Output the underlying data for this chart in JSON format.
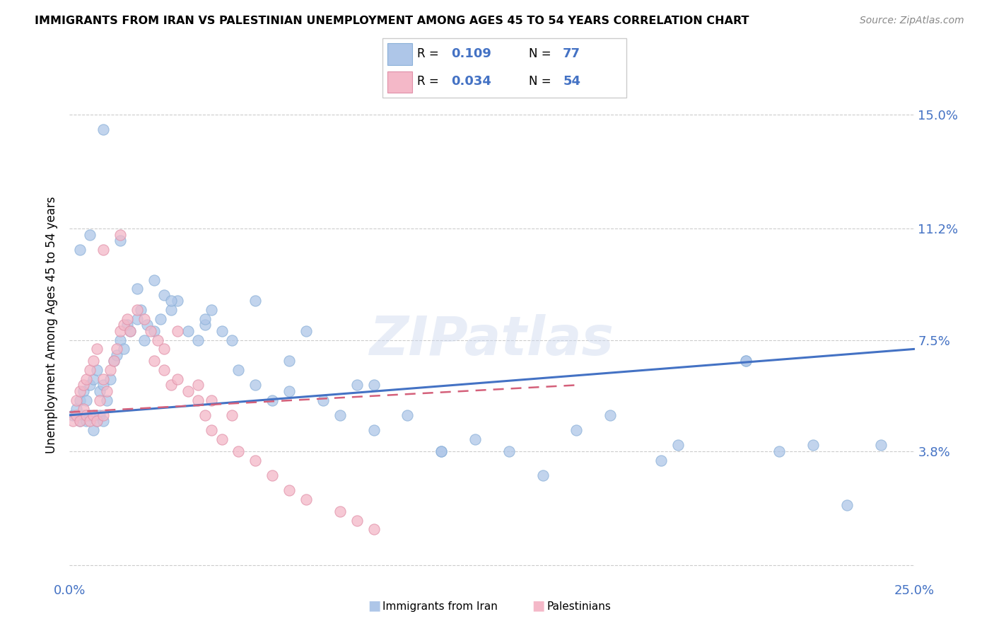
{
  "title": "IMMIGRANTS FROM IRAN VS PALESTINIAN UNEMPLOYMENT AMONG AGES 45 TO 54 YEARS CORRELATION CHART",
  "source": "Source: ZipAtlas.com",
  "ylabel": "Unemployment Among Ages 45 to 54 years",
  "xlim": [
    0.0,
    0.25
  ],
  "ylim": [
    -0.005,
    0.165
  ],
  "ytick_vals": [
    0.0,
    0.038,
    0.075,
    0.112,
    0.15
  ],
  "ytick_labels": [
    "",
    "3.8%",
    "7.5%",
    "11.2%",
    "15.0%"
  ],
  "xtick_vals": [
    0.0,
    0.05,
    0.1,
    0.15,
    0.2,
    0.25
  ],
  "xtick_labels": [
    "0.0%",
    "",
    "",
    "",
    "",
    "25.0%"
  ],
  "legend_R1": "0.109",
  "legend_N1": "77",
  "legend_R2": "0.034",
  "legend_N2": "54",
  "color_iran": "#aec6e8",
  "color_pal": "#f4b8c8",
  "color_line_iran": "#4472C4",
  "color_line_pal": "#d4607a",
  "iran_line_x": [
    0.0,
    0.25
  ],
  "iran_line_y": [
    0.05,
    0.072
  ],
  "pal_line_x": [
    0.0,
    0.15
  ],
  "pal_line_y": [
    0.051,
    0.06
  ],
  "iran_pts_x": [
    0.001,
    0.002,
    0.003,
    0.003,
    0.004,
    0.004,
    0.005,
    0.005,
    0.006,
    0.006,
    0.007,
    0.007,
    0.008,
    0.008,
    0.009,
    0.009,
    0.01,
    0.01,
    0.011,
    0.012,
    0.013,
    0.014,
    0.015,
    0.016,
    0.017,
    0.018,
    0.02,
    0.021,
    0.022,
    0.023,
    0.025,
    0.027,
    0.028,
    0.03,
    0.032,
    0.035,
    0.038,
    0.04,
    0.042,
    0.045,
    0.048,
    0.05,
    0.055,
    0.06,
    0.065,
    0.07,
    0.075,
    0.08,
    0.085,
    0.09,
    0.1,
    0.11,
    0.12,
    0.13,
    0.15,
    0.16,
    0.18,
    0.2,
    0.21,
    0.22,
    0.23,
    0.003,
    0.006,
    0.01,
    0.015,
    0.02,
    0.025,
    0.03,
    0.04,
    0.055,
    0.065,
    0.09,
    0.11,
    0.14,
    0.175,
    0.2,
    0.24
  ],
  "iran_pts_y": [
    0.05,
    0.052,
    0.048,
    0.055,
    0.05,
    0.058,
    0.048,
    0.055,
    0.05,
    0.06,
    0.045,
    0.062,
    0.048,
    0.065,
    0.05,
    0.058,
    0.048,
    0.06,
    0.055,
    0.062,
    0.068,
    0.07,
    0.075,
    0.072,
    0.08,
    0.078,
    0.082,
    0.085,
    0.075,
    0.08,
    0.078,
    0.082,
    0.09,
    0.085,
    0.088,
    0.078,
    0.075,
    0.08,
    0.085,
    0.078,
    0.075,
    0.065,
    0.06,
    0.055,
    0.058,
    0.078,
    0.055,
    0.05,
    0.06,
    0.045,
    0.05,
    0.038,
    0.042,
    0.038,
    0.045,
    0.05,
    0.04,
    0.068,
    0.038,
    0.04,
    0.02,
    0.105,
    0.11,
    0.145,
    0.108,
    0.092,
    0.095,
    0.088,
    0.082,
    0.088,
    0.068,
    0.06,
    0.038,
    0.03,
    0.035,
    0.068,
    0.04
  ],
  "pal_pts_x": [
    0.001,
    0.002,
    0.002,
    0.003,
    0.003,
    0.004,
    0.004,
    0.005,
    0.005,
    0.006,
    0.006,
    0.007,
    0.007,
    0.008,
    0.008,
    0.009,
    0.01,
    0.01,
    0.011,
    0.012,
    0.013,
    0.014,
    0.015,
    0.016,
    0.017,
    0.018,
    0.02,
    0.022,
    0.024,
    0.026,
    0.028,
    0.03,
    0.032,
    0.035,
    0.038,
    0.04,
    0.042,
    0.045,
    0.05,
    0.055,
    0.06,
    0.065,
    0.07,
    0.08,
    0.085,
    0.09,
    0.025,
    0.028,
    0.032,
    0.038,
    0.042,
    0.048,
    0.01,
    0.015
  ],
  "pal_pts_y": [
    0.048,
    0.05,
    0.055,
    0.048,
    0.058,
    0.052,
    0.06,
    0.05,
    0.062,
    0.048,
    0.065,
    0.05,
    0.068,
    0.048,
    0.072,
    0.055,
    0.05,
    0.062,
    0.058,
    0.065,
    0.068,
    0.072,
    0.078,
    0.08,
    0.082,
    0.078,
    0.085,
    0.082,
    0.078,
    0.075,
    0.065,
    0.06,
    0.062,
    0.058,
    0.055,
    0.05,
    0.045,
    0.042,
    0.038,
    0.035,
    0.03,
    0.025,
    0.022,
    0.018,
    0.015,
    0.012,
    0.068,
    0.072,
    0.078,
    0.06,
    0.055,
    0.05,
    0.105,
    0.11
  ]
}
